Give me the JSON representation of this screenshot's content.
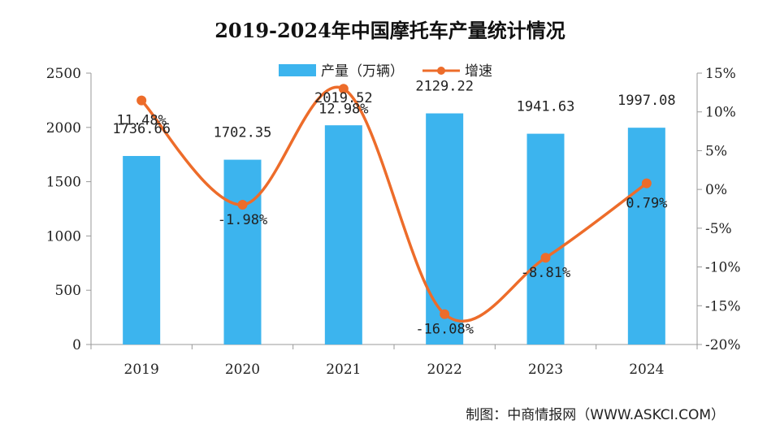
{
  "chart_data": {
    "type": "bar",
    "title": "2019-2024年中国摩托车产量统计情况",
    "categories": [
      "2019",
      "2020",
      "2021",
      "2022",
      "2023",
      "2024"
    ],
    "series": [
      {
        "name": "产量（万辆）",
        "type": "bar",
        "axis": "left",
        "values": [
          1736.66,
          1702.35,
          2019.52,
          2129.22,
          1941.63,
          1997.08
        ],
        "labels": [
          "1736.66",
          "1702.35",
          "2019.52",
          "2129.22",
          "1941.63",
          "1997.08"
        ],
        "color": "#3cb4ee"
      },
      {
        "name": "增速",
        "type": "line",
        "axis": "right",
        "values": [
          11.48,
          -1.98,
          12.98,
          -16.08,
          -8.81,
          0.79
        ],
        "labels": [
          "11.48%",
          "-1.98%",
          "12.98%",
          "-16.08%",
          "-8.81%",
          "0.79%"
        ],
        "color": "#ed6c2a"
      }
    ],
    "ylim_left": [
      0,
      2500
    ],
    "yticks_left": [
      "0",
      "500",
      "1000",
      "1500",
      "2000",
      "2500"
    ],
    "ylim_right": [
      -20,
      15
    ],
    "yticks_right": [
      "-20%",
      "-15%",
      "-10%",
      "-5%",
      "0%",
      "5%",
      "10%",
      "15%"
    ],
    "legend_position": "top-center",
    "grid": false
  },
  "footer": {
    "source": "制图：中商情报网（WWW.ASKCI.COM）"
  }
}
